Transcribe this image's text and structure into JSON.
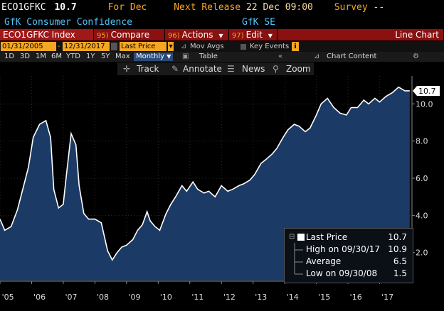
{
  "header": {
    "ticker": "ECO1GFKC",
    "value": "10.7",
    "for_label": "For",
    "for_value": "Dec",
    "next_release_label": "Next Release",
    "next_release_value": "22 Dec 09:00",
    "survey_label": "Survey",
    "survey_value": "--",
    "description": "GfK Consumer Confidence",
    "source": "GfK SE"
  },
  "commandbar": {
    "security": "ECO1GFKC Index",
    "compare_num": "95)",
    "compare": "Compare",
    "actions_num": "96)",
    "actions": "Actions",
    "edit_num": "97)",
    "edit": "Edit",
    "chart_type": "Line Chart"
  },
  "datebar": {
    "start": "01/31/2005",
    "end": "12/31/2017",
    "field": "Last Price",
    "mov_avgs": "Mov Avgs",
    "key_events": "Key Events"
  },
  "periodbar": {
    "periods": [
      "1D",
      "3D",
      "1M",
      "6M",
      "YTD",
      "1Y",
      "5Y",
      "Max"
    ],
    "frequency": "Monthly",
    "table": "Table",
    "chart_content": "Chart Content"
  },
  "toolbar": {
    "track": "Track",
    "annotate": "Annotate",
    "news": "News",
    "zoom": "Zoom"
  },
  "legend": {
    "last_price_label": "Last Price",
    "last_price_value": "10.7",
    "high_label": "High on 09/30/17",
    "high_value": "10.9",
    "average_label": "Average",
    "average_value": "6.5",
    "low_label": "Low on 09/30/08",
    "low_value": "1.5"
  },
  "colors": {
    "accent_orange": "#f5a623",
    "button_red": "#8b1010",
    "area_fill": "#1c3a66",
    "line": "#ffffff"
  },
  "chart_data": {
    "type": "area",
    "last_value_label": "10.7",
    "yticks": [
      "2.0",
      "4.0",
      "6.0",
      "8.0",
      "10.0"
    ],
    "ylim": [
      0.5,
      11.5
    ],
    "xlim": [
      2005.0,
      2018.0
    ],
    "xticks": [
      "'05",
      "'06",
      "'07",
      "'08",
      "'09",
      "'10",
      "'11",
      "'12",
      "'13",
      "'14",
      "'15",
      "'16",
      "'17"
    ],
    "xtick_positions": [
      2005.25,
      2006.25,
      2007.25,
      2008.25,
      2009.25,
      2010.25,
      2011.25,
      2012.25,
      2013.25,
      2014.25,
      2015.25,
      2016.25,
      2017.25
    ],
    "x": [
      2005.0,
      2005.15,
      2005.35,
      2005.55,
      2005.75,
      2005.9,
      2006.05,
      2006.25,
      2006.45,
      2006.6,
      2006.7,
      2006.85,
      2007.0,
      2007.1,
      2007.25,
      2007.4,
      2007.5,
      2007.65,
      2007.8,
      2008.0,
      2008.2,
      2008.4,
      2008.55,
      2008.7,
      2008.85,
      2009.0,
      2009.2,
      2009.35,
      2009.5,
      2009.65,
      2009.75,
      2009.9,
      2010.05,
      2010.25,
      2010.4,
      2010.55,
      2010.75,
      2010.9,
      2011.1,
      2011.25,
      2011.45,
      2011.6,
      2011.8,
      2012.0,
      2012.2,
      2012.35,
      2012.55,
      2012.7,
      2012.9,
      2013.05,
      2013.25,
      2013.4,
      2013.6,
      2013.75,
      2013.95,
      2014.1,
      2014.3,
      2014.45,
      2014.65,
      2014.8,
      2015.0,
      2015.15,
      2015.35,
      2015.55,
      2015.75,
      2015.95,
      2016.1,
      2016.3,
      2016.5,
      2016.65,
      2016.85,
      2017.0,
      2017.2,
      2017.4,
      2017.6,
      2017.8,
      2017.95
    ],
    "values": [
      3.8,
      3.2,
      3.4,
      4.3,
      5.6,
      6.6,
      8.2,
      8.9,
      9.1,
      8.2,
      5.4,
      4.4,
      4.6,
      6.2,
      8.4,
      7.8,
      5.6,
      4.1,
      3.8,
      3.8,
      3.6,
      2.1,
      1.6,
      2.0,
      2.3,
      2.4,
      2.7,
      3.2,
      3.5,
      4.2,
      3.7,
      3.4,
      3.2,
      4.1,
      4.6,
      5.0,
      5.6,
      5.3,
      5.8,
      5.4,
      5.2,
      5.3,
      5.0,
      5.6,
      5.3,
      5.4,
      5.6,
      5.7,
      5.9,
      6.2,
      6.8,
      7.0,
      7.3,
      7.6,
      8.2,
      8.6,
      8.9,
      8.8,
      8.5,
      8.7,
      9.4,
      10.0,
      10.3,
      9.8,
      9.5,
      9.4,
      9.8,
      9.8,
      10.2,
      10.0,
      10.3,
      10.1,
      10.4,
      10.6,
      10.9,
      10.7,
      10.7
    ]
  }
}
